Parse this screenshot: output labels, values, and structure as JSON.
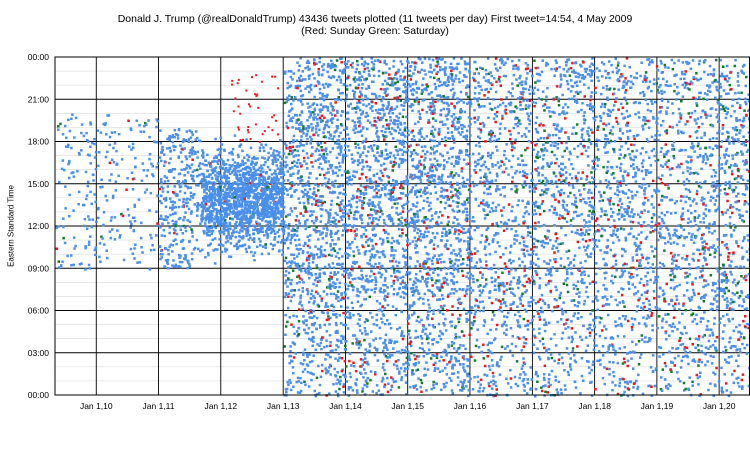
{
  "chart_data": {
    "type": "scatter",
    "title": "Donald J. Trump  (@realDonaldTrump)     43436 tweets plotted  (11 tweets per day)  First tweet=14:54, 4 May 2009",
    "subtitle": "(Red: Sunday  Green: Saturday)",
    "xlabel": "",
    "ylabel": "Eastern Standard Time",
    "x_ticks": [
      "Jan 1,10",
      "Jan 1,11",
      "Jan 1,12",
      "Jan 1,13",
      "Jan 1,14",
      "Jan 1,15",
      "Jan 1,16",
      "Jan 1,17",
      "Jan 1,18",
      "Jan 1,19",
      "Jan 1,20"
    ],
    "y_ticks": [
      "00:00",
      "03:00",
      "06:00",
      "09:00",
      "12:00",
      "15:00",
      "18:00",
      "21:00",
      "00:00"
    ],
    "xlim": [
      "2009-05-04",
      "2020-06-30"
    ],
    "ylim": [
      0,
      24
    ],
    "grid": true,
    "colors": {
      "weekday": "#4a8fe8",
      "sunday": "#e8191e",
      "saturday": "#0f7d2c"
    },
    "series": [
      {
        "name": "Sunday",
        "color": "#e8191e"
      },
      {
        "name": "Saturday",
        "color": "#0f7d2c"
      }
    ],
    "tweets_plotted": 43436,
    "tweets_per_day": 11,
    "first_tweet": "14:54, 4 May 2009"
  }
}
